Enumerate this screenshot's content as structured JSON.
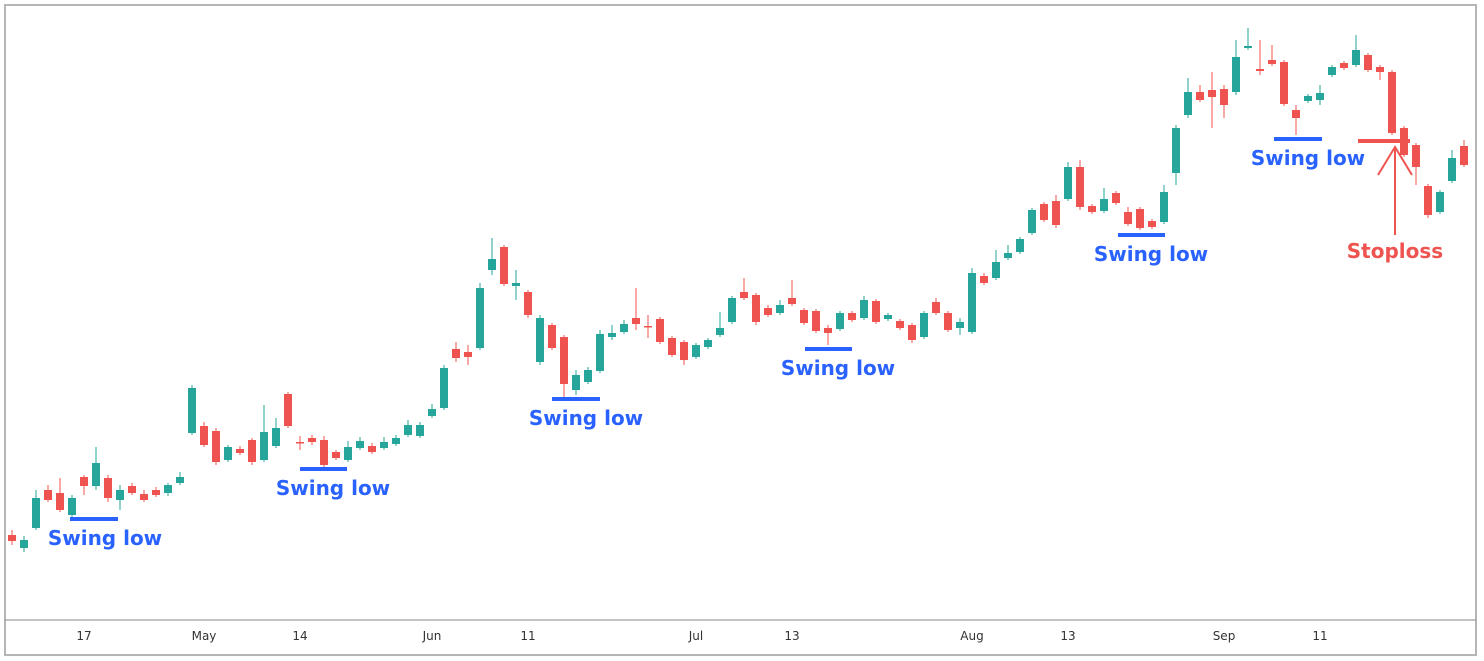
{
  "chart_data": {
    "type": "candlestick",
    "up_color": "#26a69a",
    "down_color": "#ef5350",
    "annotation_color": "#2962ff",
    "stoploss_color": "#ef5350",
    "ylim": [
      0,
      615
    ],
    "categories": [
      null,
      null,
      null,
      null,
      null,
      null,
      "17",
      null,
      null,
      null,
      null,
      null,
      null,
      null,
      null,
      null,
      "May",
      null,
      null,
      null,
      null,
      null,
      null,
      null,
      "14",
      null,
      null,
      null,
      null,
      null,
      null,
      null,
      null,
      null,
      null,
      "Jun",
      null,
      null,
      null,
      null,
      null,
      null,
      null,
      "11",
      null,
      null,
      null,
      null,
      null,
      null,
      null,
      null,
      null,
      null,
      null,
      null,
      null,
      "Jul",
      null,
      null,
      null,
      null,
      null,
      null,
      null,
      "13",
      null,
      null,
      null,
      null,
      null,
      null,
      null,
      null,
      null,
      null,
      null,
      null,
      null,
      null,
      "Aug",
      null,
      null,
      null,
      null,
      null,
      null,
      null,
      "13",
      null,
      null,
      null,
      null,
      null,
      null,
      null,
      null,
      null,
      null,
      null,
      null,
      "Sep",
      null,
      null,
      null,
      null,
      null,
      null,
      null,
      "11",
      null,
      null,
      null,
      null,
      null,
      null,
      null,
      null,
      null,
      null,
      null,
      null
    ],
    "open": [
      85,
      72,
      92,
      130,
      127,
      105,
      143,
      134,
      142,
      120,
      134,
      126,
      130,
      127,
      137,
      187,
      194,
      189,
      160,
      171,
      180,
      160,
      174,
      226,
      178,
      182,
      180,
      168,
      160,
      172,
      174,
      172,
      176,
      185,
      184,
      204,
      212,
      271,
      268,
      272,
      350,
      373,
      334,
      328,
      258,
      295,
      283,
      230,
      238,
      249,
      283,
      288,
      302,
      294,
      301,
      282,
      278,
      263,
      273,
      285,
      298,
      328,
      325,
      312,
      307,
      322,
      310,
      309,
      292,
      291,
      307,
      302,
      319,
      301,
      299,
      295,
      283,
      318,
      307,
      292,
      288,
      344,
      342,
      362,
      368,
      387,
      416,
      419,
      421,
      453,
      414,
      409,
      427,
      408,
      411,
      399,
      398,
      447,
      505,
      528,
      530,
      531,
      528,
      572,
      551,
      560,
      558,
      510,
      519,
      520,
      545,
      557,
      555,
      565,
      553,
      548,
      492,
      475,
      434,
      408,
      439,
      474
    ],
    "high": [
      90,
      84,
      130,
      135,
      142,
      125,
      145,
      173,
      145,
      135,
      137,
      130,
      133,
      137,
      148,
      235,
      198,
      192,
      175,
      174,
      182,
      215,
      202,
      228,
      184,
      185,
      184,
      170,
      179,
      183,
      177,
      183,
      185,
      200,
      198,
      216,
      255,
      278,
      275,
      337,
      382,
      375,
      350,
      330,
      305,
      297,
      285,
      250,
      253,
      290,
      295,
      300,
      332,
      305,
      303,
      284,
      280,
      277,
      282,
      308,
      324,
      342,
      327,
      315,
      320,
      340,
      312,
      311,
      295,
      309,
      309,
      324,
      321,
      307,
      301,
      297,
      309,
      322,
      309,
      302,
      352,
      347,
      370,
      375,
      383,
      412,
      418,
      425,
      458,
      460,
      416,
      432,
      429,
      413,
      413,
      401,
      435,
      495,
      542,
      535,
      548,
      535,
      580,
      592,
      580,
      575,
      560,
      515,
      526,
      535,
      555,
      559,
      585,
      567,
      555,
      550,
      494,
      477,
      436,
      430,
      470,
      480
    ],
    "low": [
      75,
      68,
      90,
      118,
      108,
      102,
      125,
      130,
      118,
      110,
      125,
      118,
      123,
      124,
      135,
      185,
      173,
      155,
      158,
      165,
      155,
      158,
      172,
      192,
      170,
      175,
      152,
      160,
      158,
      170,
      166,
      170,
      174,
      183,
      182,
      202,
      210,
      258,
      255,
      270,
      345,
      334,
      320,
      302,
      255,
      270,
      222,
      225,
      236,
      247,
      280,
      286,
      290,
      282,
      276,
      263,
      255,
      261,
      271,
      283,
      296,
      320,
      295,
      303,
      305,
      314,
      295,
      287,
      275,
      289,
      298,
      300,
      296,
      299,
      290,
      277,
      281,
      305,
      288,
      285,
      286,
      335,
      340,
      360,
      366,
      385,
      398,
      392,
      419,
      410,
      406,
      407,
      415,
      394,
      390,
      391,
      396,
      435,
      502,
      518,
      492,
      502,
      525,
      570,
      545,
      554,
      514,
      485,
      517,
      515,
      543,
      550,
      553,
      548,
      540,
      485,
      463,
      435,
      402,
      406,
      437,
      453
    ],
    "close": [
      79,
      80,
      122,
      120,
      110,
      122,
      134,
      157,
      122,
      130,
      127,
      120,
      125,
      135,
      143,
      232,
      175,
      158,
      173,
      167,
      158,
      188,
      192,
      194,
      177,
      178,
      155,
      162,
      173,
      179,
      168,
      178,
      182,
      195,
      195,
      211,
      252,
      262,
      263,
      332,
      361,
      336,
      337,
      305,
      302,
      272,
      236,
      245,
      250,
      286,
      287,
      296,
      296,
      293,
      278,
      265,
      260,
      275,
      280,
      292,
      322,
      322,
      298,
      305,
      315,
      316,
      297,
      289,
      287,
      307,
      300,
      320,
      298,
      305,
      292,
      280,
      307,
      307,
      290,
      298,
      347,
      337,
      358,
      367,
      381,
      410,
      400,
      395,
      453,
      413,
      408,
      421,
      417,
      396,
      392,
      393,
      428,
      492,
      528,
      520,
      523,
      515,
      563,
      574,
      549,
      556,
      516,
      502,
      524,
      527,
      553,
      552,
      570,
      550,
      548,
      487,
      465,
      453,
      405,
      428,
      462,
      455
    ],
    "annotations": [
      {
        "text": "Swing low",
        "level": 101
      },
      {
        "text": "Swing low",
        "level": 151
      },
      {
        "text": "Swing low",
        "level": 221
      },
      {
        "text": "Swing low",
        "level": 271
      },
      {
        "text": "Swing low",
        "level": 385
      },
      {
        "text": "Swing low",
        "level": 481
      }
    ],
    "stoploss": {
      "text": "Stoploss",
      "level": 479
    }
  }
}
